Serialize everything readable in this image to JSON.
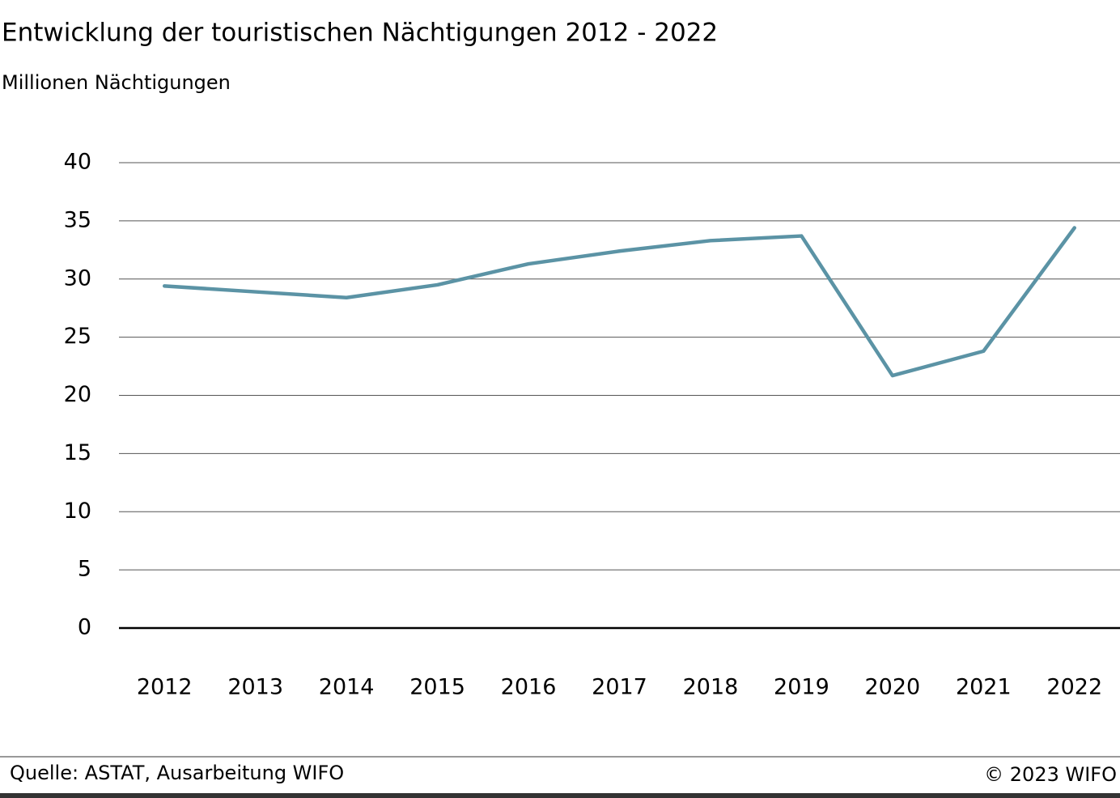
{
  "chart_data": {
    "type": "line",
    "title": "Entwicklung der touristischen Nächtigungen 2012 - 2022",
    "subtitle": "Millionen Nächtigungen",
    "categories": [
      "2012",
      "2013",
      "2014",
      "2015",
      "2016",
      "2017",
      "2018",
      "2019",
      "2020",
      "2021",
      "2022"
    ],
    "values": [
      29.4,
      28.9,
      28.4,
      29.5,
      31.3,
      32.4,
      33.3,
      33.7,
      21.7,
      23.8,
      34.4
    ],
    "color": "#5b93a5",
    "ylim": [
      0,
      40
    ],
    "yticks": [
      0,
      5,
      10,
      15,
      20,
      25,
      30,
      35,
      40
    ],
    "grid": true,
    "source": "Quelle: ASTAT, Ausarbeitung WIFO",
    "copyright": "© 2023 WIFO"
  }
}
